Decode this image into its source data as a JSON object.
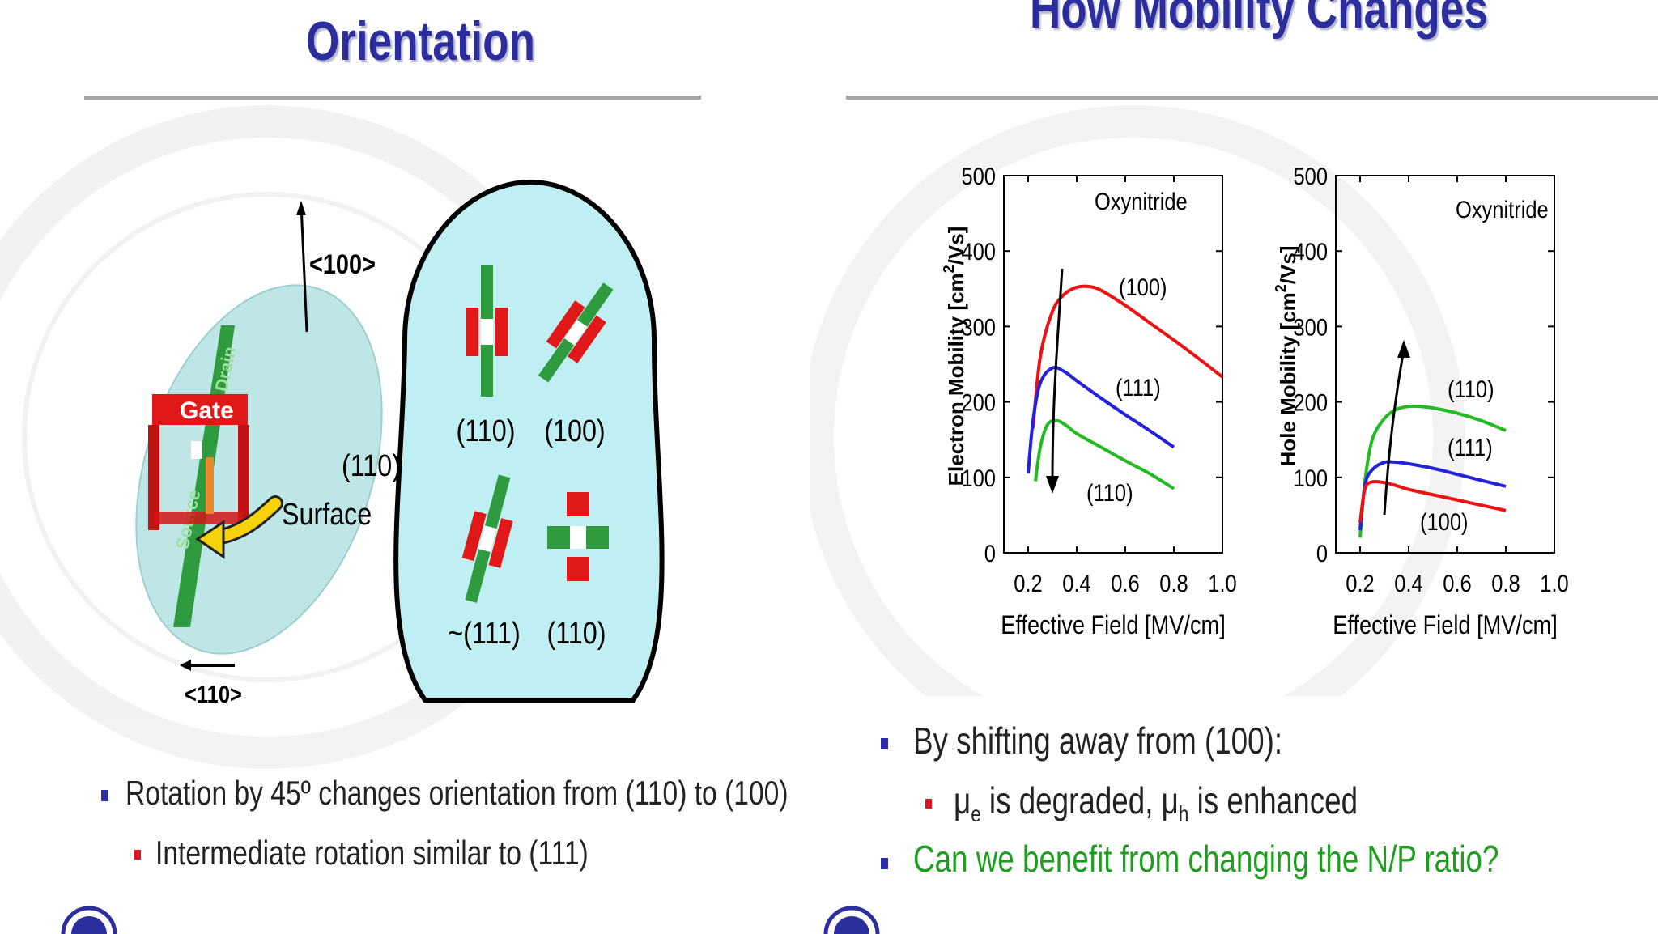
{
  "left_slide": {
    "title": "Orientation",
    "diagram": {
      "dir_100": "<100>",
      "dir_110": "<110>",
      "gate": "Gate",
      "drain": "Drain",
      "source": "Source",
      "surface_orient": "(110)",
      "surface": "Surface",
      "cell_labels": [
        "(110)",
        "(100)",
        "~(111)",
        "(110)"
      ]
    },
    "bullets": [
      {
        "level": 1,
        "text": "Rotation by 45º changes orientation from (110) to (100)"
      },
      {
        "level": 2,
        "text": "Intermediate rotation similar to (111)"
      }
    ]
  },
  "right_slide": {
    "title": "How Mobility Changes",
    "bullet1": "By shifting away from (100):",
    "sub_bullet": {
      "mu": "μ",
      "sub_e": "e",
      "mid": " is degraded, ",
      "sub_h": "h",
      "end": " is enhanced"
    },
    "bullet2": "Can we benefit from changing the N/P ratio?"
  },
  "colors": {
    "title": "#2b2e9c",
    "accent_green": "#1e9e1e",
    "series_100": "#ee1111",
    "series_111": "#2222dd",
    "series_110": "#22bb22"
  },
  "chart_data": [
    {
      "type": "line",
      "title": "Oxynitride",
      "xlabel": "Effective Field [MV/cm]",
      "ylabel": "Electron Mobility [cm²/Vs]",
      "ylabel_parts": {
        "main": "Electron Mobility [cm",
        "sup": "2",
        "tail": "/Vs]"
      },
      "xlim": [
        0.1,
        1.0
      ],
      "ylim": [
        0,
        500
      ],
      "xticks": [
        "0.2",
        "0.4",
        "0.6",
        "0.8",
        "1.0"
      ],
      "yticks": [
        "0",
        "100",
        "200",
        "300",
        "400",
        "500"
      ],
      "series": [
        {
          "name": "(100)",
          "x": [
            0.22,
            0.25,
            0.3,
            0.35,
            0.4,
            0.45,
            0.5,
            0.6,
            0.7,
            0.8,
            0.9,
            1.0
          ],
          "y": [
            165,
            260,
            320,
            343,
            352,
            353,
            348,
            328,
            305,
            282,
            258,
            233
          ]
        },
        {
          "name": "(111)",
          "x": [
            0.2,
            0.22,
            0.25,
            0.3,
            0.35,
            0.4,
            0.5,
            0.6,
            0.7,
            0.8
          ],
          "y": [
            105,
            175,
            225,
            245,
            240,
            228,
            205,
            183,
            162,
            140
          ]
        },
        {
          "name": "(110)",
          "x": [
            0.23,
            0.25,
            0.28,
            0.32,
            0.36,
            0.4,
            0.5,
            0.6,
            0.7,
            0.8
          ],
          "y": [
            95,
            140,
            170,
            175,
            168,
            158,
            140,
            122,
            105,
            85
          ]
        }
      ],
      "annotations": [
        {
          "label": "(100)"
        },
        {
          "label": "(111)"
        },
        {
          "label": "(110)"
        }
      ]
    },
    {
      "type": "line",
      "title": "Oxynitride",
      "xlabel": "Effective Field [MV/cm]",
      "ylabel": "Hole Mobility [cm²/Vs]",
      "ylabel_parts": {
        "main": "Hole Mobility [cm",
        "sup": "2",
        "tail": "/Vs]"
      },
      "xlim": [
        0.1,
        1.0
      ],
      "ylim": [
        0,
        500
      ],
      "xticks": [
        "0.2",
        "0.4",
        "0.6",
        "0.8",
        "1.0"
      ],
      "yticks": [
        "0",
        "100",
        "200",
        "300",
        "400",
        "500"
      ],
      "series": [
        {
          "name": "(110)",
          "x": [
            0.2,
            0.22,
            0.25,
            0.3,
            0.35,
            0.4,
            0.45,
            0.5,
            0.6,
            0.7,
            0.8
          ],
          "y": [
            20,
            95,
            150,
            178,
            190,
            194,
            194,
            192,
            185,
            175,
            162
          ]
        },
        {
          "name": "(111)",
          "x": [
            0.2,
            0.22,
            0.25,
            0.3,
            0.35,
            0.4,
            0.5,
            0.6,
            0.7,
            0.8
          ],
          "y": [
            30,
            90,
            110,
            120,
            120,
            118,
            112,
            104,
            96,
            88
          ]
        },
        {
          "name": "(100)",
          "x": [
            0.2,
            0.22,
            0.25,
            0.3,
            0.35,
            0.4,
            0.5,
            0.6,
            0.7,
            0.8
          ],
          "y": [
            40,
            85,
            94,
            93,
            89,
            84,
            77,
            70,
            63,
            56
          ]
        }
      ],
      "annotations": [
        {
          "label": "(110)"
        },
        {
          "label": "(111)"
        },
        {
          "label": "(100)"
        }
      ]
    }
  ]
}
